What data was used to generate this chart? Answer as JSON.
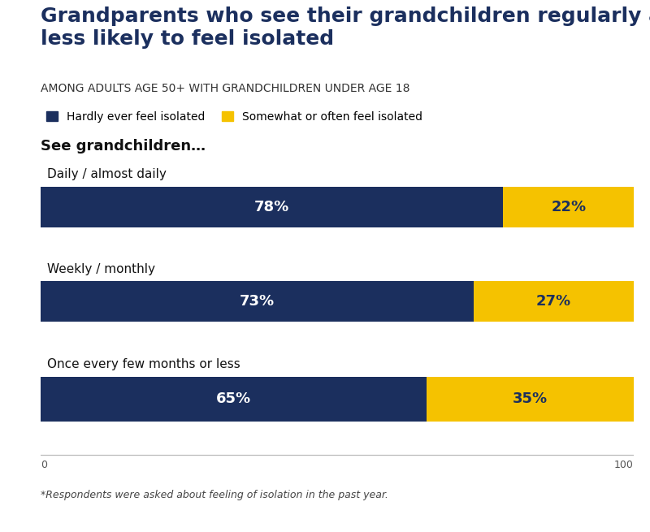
{
  "title": "Grandparents who see their grandchildren regularly are\nless likely to feel isolated",
  "subtitle": "AMONG ADULTS AGE 50+ WITH GRANDCHILDREN UNDER AGE 18",
  "section_label": "See grandchildren…",
  "categories": [
    "Daily / almost daily",
    "Weekly / monthly",
    "Once every few months or less"
  ],
  "dark_values": [
    78,
    73,
    65
  ],
  "light_values": [
    22,
    27,
    35
  ],
  "dark_color": "#1b2f5e",
  "light_color": "#f5c200",
  "dark_label": "Hardly ever feel isolated",
  "light_label": "Somewhat or often feel isolated",
  "footnote": "*Respondents were asked about feeling of isolation in the past year.",
  "bg_color": "#ffffff",
  "panel_bg_color": "#e5e5e5",
  "title_color": "#1b2f5e",
  "xlim": [
    0,
    100
  ],
  "bar_label_fontsize": 13,
  "title_fontsize": 18,
  "subtitle_fontsize": 10,
  "legend_fontsize": 10,
  "category_fontsize": 11,
  "section_fontsize": 13,
  "footnote_fontsize": 9
}
